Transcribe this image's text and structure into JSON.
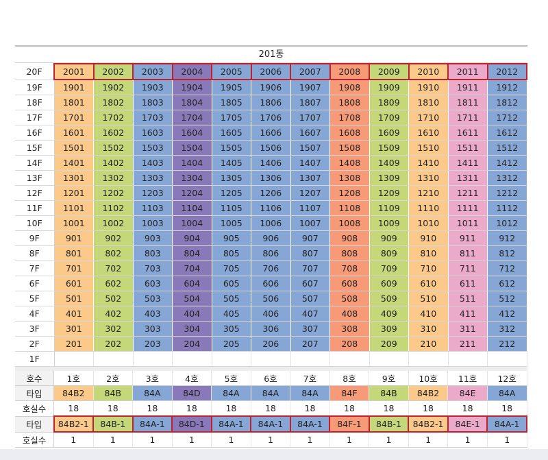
{
  "building": "201동",
  "colors": {
    "orange": "#fbc98a",
    "green": "#c4d87a",
    "blue": "#86a6d6",
    "purple": "#8a79b9",
    "salmon": "#f69a77",
    "pink": "#ecaacb"
  },
  "columns": [
    {
      "color": "orange",
      "ho": "1호",
      "type": "84B2",
      "count": "18",
      "type2": "84B2-1",
      "count2": "1"
    },
    {
      "color": "green",
      "ho": "2호",
      "type": "84B",
      "count": "18",
      "type2": "84B-1",
      "count2": "1"
    },
    {
      "color": "blue",
      "ho": "3호",
      "type": "84A",
      "count": "18",
      "type2": "84A-1",
      "count2": "1"
    },
    {
      "color": "purple",
      "ho": "4호",
      "type": "84D",
      "count": "18",
      "type2": "84D-1",
      "count2": "1"
    },
    {
      "color": "blue",
      "ho": "5호",
      "type": "84A",
      "count": "18",
      "type2": "84A-1",
      "count2": "1"
    },
    {
      "color": "blue",
      "ho": "6호",
      "type": "84A",
      "count": "18",
      "type2": "84A-1",
      "count2": "1"
    },
    {
      "color": "blue",
      "ho": "7호",
      "type": "84A",
      "count": "18",
      "type2": "84A-1",
      "count2": "1"
    },
    {
      "color": "salmon",
      "ho": "8호",
      "type": "84F",
      "count": "18",
      "type2": "84F-1",
      "count2": "1"
    },
    {
      "color": "green",
      "ho": "9호",
      "type": "84B",
      "count": "18",
      "type2": "84B-1",
      "count2": "1"
    },
    {
      "color": "orange",
      "ho": "10호",
      "type": "84B2",
      "count": "18",
      "type2": "84B2-1",
      "count2": "1"
    },
    {
      "color": "pink",
      "ho": "11호",
      "type": "84E",
      "count": "18",
      "type2": "84E-1",
      "count2": "1"
    },
    {
      "color": "blue",
      "ho": "12호",
      "type": "84A",
      "count": "18",
      "type2": "84A-1",
      "count2": "1"
    }
  ],
  "floors": [
    {
      "label": "20F",
      "units": [
        "2001",
        "2002",
        "2003",
        "2004",
        "2005",
        "2006",
        "2007",
        "2008",
        "2009",
        "2010",
        "2011",
        "2012"
      ]
    },
    {
      "label": "19F",
      "units": [
        "1901",
        "1902",
        "1903",
        "1904",
        "1905",
        "1906",
        "1907",
        "1908",
        "1909",
        "1910",
        "1911",
        "1912"
      ]
    },
    {
      "label": "18F",
      "units": [
        "1801",
        "1802",
        "1803",
        "1804",
        "1805",
        "1806",
        "1807",
        "1808",
        "1809",
        "1810",
        "1811",
        "1812"
      ]
    },
    {
      "label": "17F",
      "units": [
        "1701",
        "1702",
        "1703",
        "1704",
        "1705",
        "1706",
        "1707",
        "1708",
        "1709",
        "1710",
        "1711",
        "1712"
      ]
    },
    {
      "label": "16F",
      "units": [
        "1601",
        "1602",
        "1603",
        "1604",
        "1605",
        "1606",
        "1607",
        "1608",
        "1609",
        "1610",
        "1611",
        "1612"
      ]
    },
    {
      "label": "15F",
      "units": [
        "1501",
        "1502",
        "1503",
        "1504",
        "1505",
        "1506",
        "1507",
        "1508",
        "1509",
        "1510",
        "1511",
        "1512"
      ]
    },
    {
      "label": "14F",
      "units": [
        "1401",
        "1402",
        "1403",
        "1404",
        "1405",
        "1406",
        "1407",
        "1408",
        "1409",
        "1410",
        "1411",
        "1412"
      ]
    },
    {
      "label": "13F",
      "units": [
        "1301",
        "1302",
        "1303",
        "1304",
        "1305",
        "1306",
        "1307",
        "1308",
        "1309",
        "1310",
        "1311",
        "1312"
      ]
    },
    {
      "label": "12F",
      "units": [
        "1201",
        "1202",
        "1203",
        "1204",
        "1205",
        "1206",
        "1207",
        "1208",
        "1209",
        "1210",
        "1211",
        "1212"
      ]
    },
    {
      "label": "11F",
      "units": [
        "1101",
        "1102",
        "1103",
        "1104",
        "1105",
        "1106",
        "1107",
        "1108",
        "1109",
        "1110",
        "1111",
        "1112"
      ]
    },
    {
      "label": "10F",
      "units": [
        "1001",
        "1002",
        "1003",
        "1004",
        "1005",
        "1006",
        "1007",
        "1008",
        "1009",
        "1010",
        "1011",
        "1012"
      ]
    },
    {
      "label": "9F",
      "units": [
        "901",
        "902",
        "903",
        "904",
        "905",
        "906",
        "907",
        "908",
        "909",
        "910",
        "911",
        "912"
      ]
    },
    {
      "label": "8F",
      "units": [
        "801",
        "802",
        "803",
        "804",
        "805",
        "806",
        "807",
        "808",
        "809",
        "810",
        "811",
        "812"
      ]
    },
    {
      "label": "7F",
      "units": [
        "701",
        "702",
        "703",
        "704",
        "705",
        "706",
        "707",
        "708",
        "709",
        "710",
        "711",
        "712"
      ]
    },
    {
      "label": "6F",
      "units": [
        "601",
        "602",
        "603",
        "604",
        "605",
        "606",
        "607",
        "608",
        "609",
        "610",
        "611",
        "612"
      ]
    },
    {
      "label": "5F",
      "units": [
        "501",
        "502",
        "503",
        "504",
        "505",
        "506",
        "507",
        "508",
        "509",
        "510",
        "511",
        "512"
      ]
    },
    {
      "label": "4F",
      "units": [
        "401",
        "402",
        "403",
        "404",
        "405",
        "406",
        "407",
        "408",
        "409",
        "410",
        "411",
        "412"
      ]
    },
    {
      "label": "3F",
      "units": [
        "301",
        "302",
        "303",
        "304",
        "305",
        "306",
        "307",
        "308",
        "309",
        "310",
        "311",
        "312"
      ]
    },
    {
      "label": "2F",
      "units": [
        "201",
        "202",
        "203",
        "204",
        "205",
        "206",
        "207",
        "208",
        "209",
        "210",
        "211",
        "212"
      ]
    },
    {
      "label": "1F",
      "units": [
        "",
        "",
        "",
        "",
        "",
        "",
        "",
        "",
        "",
        "",
        "",
        ""
      ]
    }
  ],
  "summary_labels": {
    "ho": "호수",
    "type": "타입",
    "count": "호실수",
    "type2": "타입",
    "count2": "호실수"
  }
}
